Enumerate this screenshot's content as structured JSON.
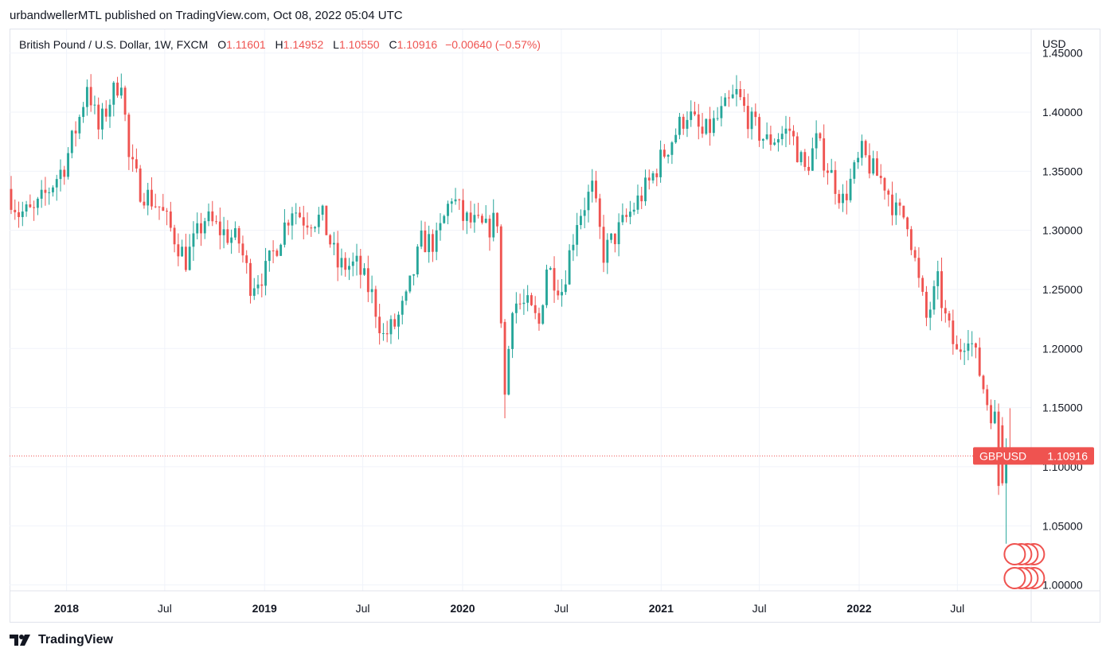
{
  "header": {
    "published_line": "urbandwellerMTL published on TradingView.com, Oct 08, 2022 05:04 UTC"
  },
  "legend": {
    "symbol": "British Pound / U.S. Dollar, 1W, FXCM",
    "open_label": "O",
    "open_value": "1.11601",
    "high_label": "H",
    "high_value": "1.14952",
    "low_label": "L",
    "low_value": "1.10550",
    "close_label": "C",
    "close_value": "1.10916",
    "change": "−0.00640 (−0.57%)"
  },
  "price_tag": {
    "name": "GBPUSD",
    "value": "1.10916"
  },
  "footer": {
    "brand": "TradingView"
  },
  "colors": {
    "up": "#26a69a",
    "down": "#ef5350",
    "grid": "#f0f3fa"
  },
  "chart_data": {
    "type": "candlestick",
    "interval": "1W",
    "currency_label": "USD",
    "ylim": [
      0.995,
      1.47
    ],
    "yticks": [
      "1.45000",
      "1.40000",
      "1.35000",
      "1.30000",
      "1.25000",
      "1.20000",
      "1.15000",
      "1.10000",
      "1.05000",
      "1.00000"
    ],
    "xticks": [
      {
        "label": "2018",
        "date": "2018-01-01",
        "bold": true
      },
      {
        "label": "Jul",
        "date": "2018-07-01",
        "bold": false
      },
      {
        "label": "2019",
        "date": "2019-01-01",
        "bold": true
      },
      {
        "label": "Jul",
        "date": "2019-07-01",
        "bold": false
      },
      {
        "label": "2020",
        "date": "2020-01-01",
        "bold": true
      },
      {
        "label": "Jul",
        "date": "2020-07-01",
        "bold": false
      },
      {
        "label": "2021",
        "date": "2021-01-01",
        "bold": true
      },
      {
        "label": "Jul",
        "date": "2021-07-01",
        "bold": false
      },
      {
        "label": "2022",
        "date": "2022-01-01",
        "bold": true
      },
      {
        "label": "Jul",
        "date": "2022-07-01",
        "bold": false
      }
    ],
    "last_price": 1.10916,
    "start_week": "2017-09-18",
    "anchors": [
      [
        "2017-09-18",
        1.335
      ],
      [
        "2017-10-09",
        1.315
      ],
      [
        "2017-11-06",
        1.315
      ],
      [
        "2017-12-04",
        1.335
      ],
      [
        "2018-01-01",
        1.355
      ],
      [
        "2018-02-01",
        1.4
      ],
      [
        "2018-02-12",
        1.425
      ],
      [
        "2018-03-05",
        1.385
      ],
      [
        "2018-03-26",
        1.41
      ],
      [
        "2018-04-16",
        1.43
      ],
      [
        "2018-04-30",
        1.36
      ],
      [
        "2018-05-21",
        1.335
      ],
      [
        "2018-06-25",
        1.32
      ],
      [
        "2018-08-13",
        1.275
      ],
      [
        "2018-09-17",
        1.31
      ],
      [
        "2018-10-15",
        1.3
      ],
      [
        "2018-11-19",
        1.29
      ],
      [
        "2018-12-10",
        1.255
      ],
      [
        "2019-01-07",
        1.265
      ],
      [
        "2019-02-25",
        1.32
      ],
      [
        "2019-03-18",
        1.31
      ],
      [
        "2019-04-22",
        1.31
      ],
      [
        "2019-05-20",
        1.27
      ],
      [
        "2019-06-24",
        1.27
      ],
      [
        "2019-07-22",
        1.245
      ],
      [
        "2019-08-12",
        1.21
      ],
      [
        "2019-09-02",
        1.22
      ],
      [
        "2019-09-23",
        1.24
      ],
      [
        "2019-10-21",
        1.29
      ],
      [
        "2019-11-18",
        1.29
      ],
      [
        "2019-12-16",
        1.33
      ],
      [
        "2020-01-06",
        1.31
      ],
      [
        "2020-02-17",
        1.3
      ],
      [
        "2020-03-09",
        1.31
      ],
      [
        "2020-03-16",
        1.22
      ],
      [
        "2020-03-23",
        1.16
      ],
      [
        "2020-04-06",
        1.24
      ],
      [
        "2020-05-04",
        1.235
      ],
      [
        "2020-05-25",
        1.22
      ],
      [
        "2020-06-08",
        1.27
      ],
      [
        "2020-07-06",
        1.25
      ],
      [
        "2020-08-03",
        1.31
      ],
      [
        "2020-08-31",
        1.335
      ],
      [
        "2020-09-21",
        1.28
      ],
      [
        "2020-10-19",
        1.3
      ],
      [
        "2020-12-14",
        1.34
      ],
      [
        "2021-01-04",
        1.36
      ],
      [
        "2021-02-22",
        1.4
      ],
      [
        "2021-03-22",
        1.38
      ],
      [
        "2021-04-12",
        1.39
      ],
      [
        "2021-05-24",
        1.415
      ],
      [
        "2021-06-21",
        1.39
      ],
      [
        "2021-07-19",
        1.375
      ],
      [
        "2021-08-30",
        1.385
      ],
      [
        "2021-09-27",
        1.35
      ],
      [
        "2021-10-18",
        1.375
      ],
      [
        "2021-12-06",
        1.325
      ],
      [
        "2022-01-10",
        1.365
      ],
      [
        "2022-01-31",
        1.35
      ],
      [
        "2022-02-21",
        1.34
      ],
      [
        "2022-03-14",
        1.315
      ],
      [
        "2022-04-04",
        1.31
      ],
      [
        "2022-04-25",
        1.255
      ],
      [
        "2022-05-09",
        1.225
      ],
      [
        "2022-05-30",
        1.255
      ],
      [
        "2022-06-13",
        1.225
      ],
      [
        "2022-07-04",
        1.195
      ],
      [
        "2022-07-25",
        1.215
      ],
      [
        "2022-08-15",
        1.18
      ],
      [
        "2022-08-29",
        1.155
      ],
      [
        "2022-09-12",
        1.14
      ],
      [
        "2022-09-19",
        1.085
      ],
      [
        "2022-09-26",
        1.115
      ],
      [
        "2022-10-03",
        1.10916
      ]
    ],
    "notes": [
      {
        "date": "2020-03-16",
        "open": 1.2225,
        "high": 1.225,
        "low": 1.141,
        "close": 1.161
      },
      {
        "date": "2022-09-19",
        "open": 1.135,
        "high": 1.142,
        "low": 1.084,
        "close": 1.086
      },
      {
        "date": "2022-09-26",
        "open": 1.086,
        "high": 1.124,
        "low": 1.0349,
        "close": 1.116
      },
      {
        "date": "2022-10-03",
        "open": 1.116,
        "high": 1.1495,
        "low": 1.1055,
        "close": 1.1092
      }
    ]
  }
}
